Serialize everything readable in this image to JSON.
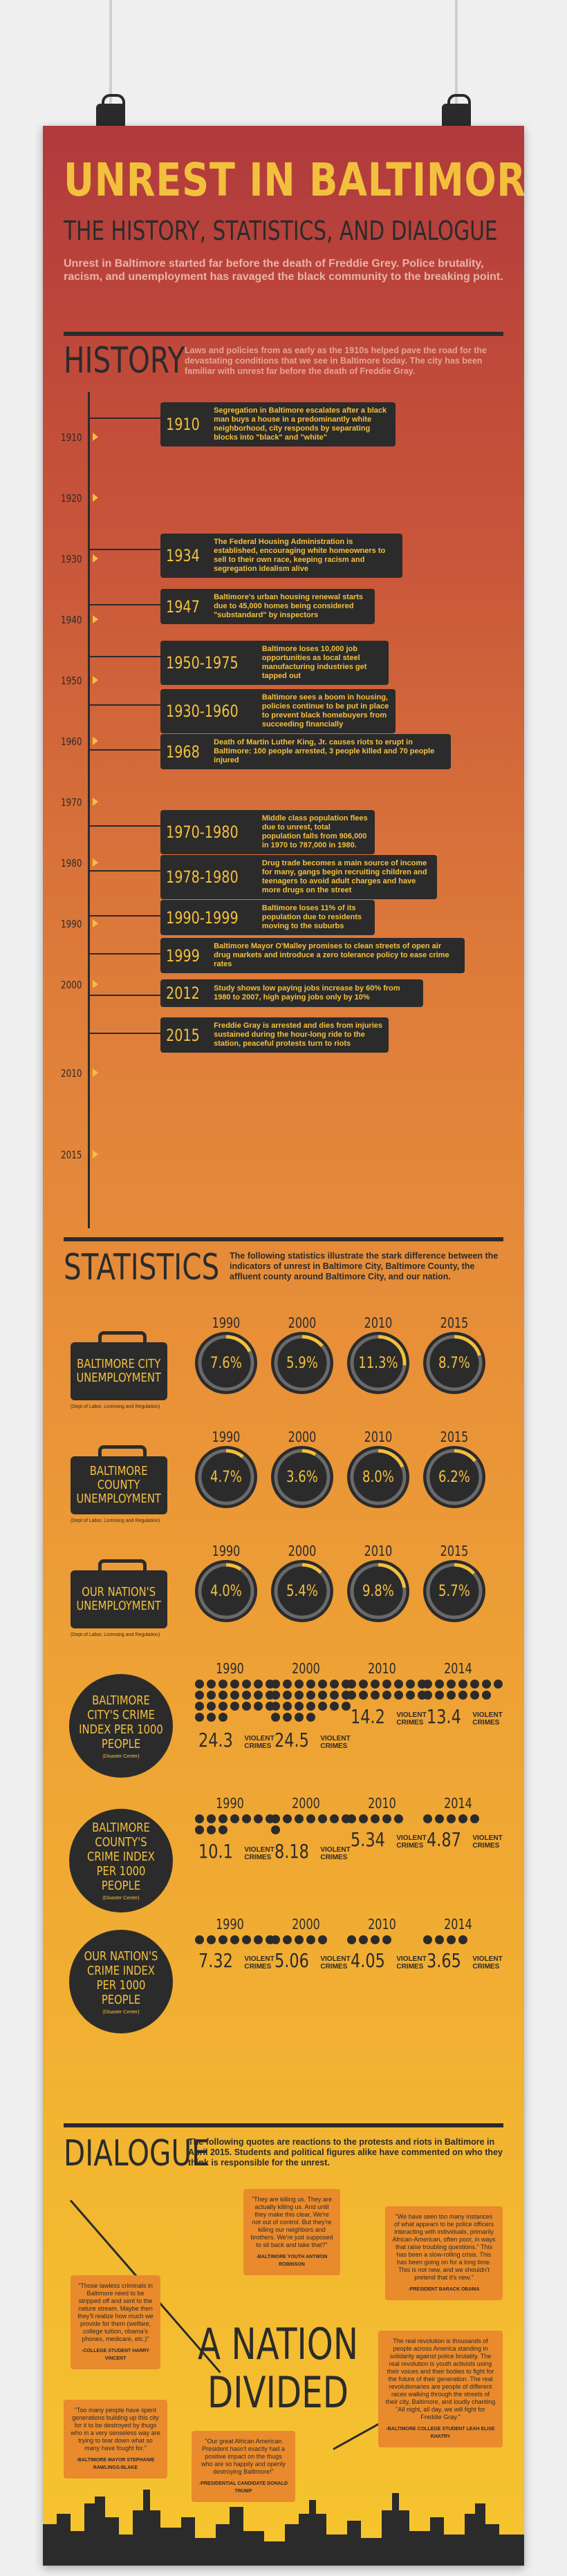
{
  "header": {
    "title": "UNREST IN BALTIMORE",
    "subtitle": "THE HISTORY, STATISTICS, AND DIALOGUE",
    "intro": "Unrest in Baltimore started far before the death of Freddie Grey. Police brutality, racism, and unemployment has ravaged the black community to the breaking point."
  },
  "history": {
    "heading": "HISTORY",
    "description": "Laws and policies from as early as the 1910s helped pave the road for the devastating conditions that we see in Baltimore today. The city has been familiar with unrest far before the death of Freddie Gray.",
    "axis_years": [
      "1910",
      "1920",
      "1930",
      "1940",
      "1950",
      "1960",
      "1970",
      "1980",
      "1990",
      "2000",
      "2010",
      "2015"
    ],
    "events": [
      {
        "year": "1910",
        "text": "Segregation in Baltimore escalates after a black man buys a house in a predominantly white neighborhood, city responds by separating blocks into \"black\" and \"white\""
      },
      {
        "year": "1934",
        "text": "The Federal Housing Administration is established, encouraging white homeowners to sell to their own race, keeping racism and segregation idealism alive"
      },
      {
        "year": "1947",
        "text": "Baltimore's urban housing renewal starts due to 45,000 homes being considered \"substandard\" by inspectors"
      },
      {
        "year": "1950-1975",
        "text": "Baltimore loses 10,000 job opportunities as local steel manufacturing industries get tapped out"
      },
      {
        "year": "1930-1960",
        "text": "Baltimore sees a boom in housing, policies continue to be put in place to prevent black homebuyers from succeeding financially"
      },
      {
        "year": "1968",
        "text": "Death of Martin Luther King, Jr. causes riots to erupt in Baltimore: 100 people arrested, 3 people killed and 70 people injured"
      },
      {
        "year": "1970-1980",
        "text": "Middle class population flees due to unrest, total population falls from 906,000 in 1970 to 787,000 in 1980."
      },
      {
        "year": "1978-1980",
        "text": "Drug trade becomes a main source of income for many, gangs begin recruiting children and teenagers to avoid adult charges and have more drugs on the street"
      },
      {
        "year": "1990-1999",
        "text": "Baltimore loses 11% of its population due to residents moving to the suburbs"
      },
      {
        "year": "1999",
        "text": "Baltimore Mayor O'Malley promises to clean streets of open air drug markets and introduce a zero tolerance policy to ease crime rates"
      },
      {
        "year": "2012",
        "text": "Study shows low paying jobs increase by 60% from 1980 to 2007, high paying jobs only by 10%"
      },
      {
        "year": "2015",
        "text": "Freddie Gray is arrested and dies from injuries sustained during the hour-long ride to the station, peaceful protests turn to riots"
      }
    ]
  },
  "statistics": {
    "heading": "STATISTICS",
    "description": "The following statistics illustrate the stark difference between the indicators of unrest in Baltimore City, Baltimore County, the affluent county around Baltimore City, and our nation.",
    "unemployment": [
      {
        "label": "BALTIMORE CITY UNEMPLOYMENT",
        "source": "(Dept of Labor, Licensing and Regulation)",
        "years": [
          "1990",
          "2000",
          "2010",
          "2015"
        ],
        "values": [
          7.6,
          5.9,
          11.3,
          8.7
        ],
        "display": [
          "7.6%",
          "5.9%",
          "11.3%",
          "8.7%"
        ]
      },
      {
        "label": "BALTIMORE COUNTY UNEMPLOYMENT",
        "source": "(Dept of Labor, Licensing and Regulation)",
        "years": [
          "1990",
          "2000",
          "2010",
          "2015"
        ],
        "values": [
          4.7,
          3.6,
          8.0,
          6.2
        ],
        "display": [
          "4.7%",
          "3.6%",
          "8.0%",
          "6.2%"
        ]
      },
      {
        "label": "OUR NATION'S UNEMPLOYMENT",
        "source": "(Dept of Labor, Licensing and Regulation)",
        "years": [
          "1990",
          "2000",
          "2010",
          "2015"
        ],
        "values": [
          4.0,
          5.4,
          9.8,
          5.7
        ],
        "display": [
          "4.0%",
          "5.4%",
          "9.8%",
          "5.7%"
        ]
      }
    ],
    "crime": [
      {
        "label": "BALTIMORE CITY'S CRIME INDEX PER 1000 PEOPLE",
        "source": "(Disaster Center)",
        "years": [
          "1990",
          "2000",
          "2010",
          "2014"
        ],
        "values": [
          24.3,
          24.5,
          14.2,
          13.4
        ],
        "display": [
          "24.3",
          "24.5",
          "14.2",
          "13.4"
        ]
      },
      {
        "label": "BALTIMORE COUNTY'S CRIME INDEX PER 1000 PEOPLE",
        "source": "(Disaster Center)",
        "years": [
          "1990",
          "2000",
          "2010",
          "2014"
        ],
        "values": [
          10.1,
          8.18,
          5.34,
          4.87
        ],
        "display": [
          "10.1",
          "8.18",
          "5.34",
          "4.87"
        ]
      },
      {
        "label": "OUR NATION'S CRIME INDEX PER 1000 PEOPLE",
        "source": "(Disaster Center)",
        "years": [
          "1990",
          "2000",
          "2010",
          "2014"
        ],
        "values": [
          7.32,
          5.06,
          4.05,
          3.65
        ],
        "display": [
          "7.32",
          "5.06",
          "4.05",
          "3.65"
        ]
      }
    ],
    "crime_unit": "VIOLENT CRIMES"
  },
  "dialogue": {
    "heading": "DIALOGUE",
    "description": "The following quotes are reactions to the protests and riots in Baltimore in April 2015. Students and political figures alike have commented on who they think is responsible for the unrest.",
    "center_line1": "A NATION",
    "center_line2": "DIVIDED",
    "quotes": [
      {
        "text": "\"They are killing us. They are actually killing us. And until they make this clear, We're not out of control. But they're killing our neighbors and brothers. We're just supposed to sit back and take that?\"",
        "author": "-BALTIMORE YOUTH ANTWON ROBINSON"
      },
      {
        "text": "\"We have seen too many instances of what appears to be police officers interacting with individuals, primarily African-American, often poor, in ways that raise troubling questions.\" This has been a slow-rolling crisis. This has been going on for a long time. This is not new, and we shouldn't pretend that it's new.\"",
        "author": "-PRESIDENT BARACK OBAMA"
      },
      {
        "text": "\"Those lawless criminals in Baltimore need to be stripped off and sent to the nature stream. Maybe then they'll realize how much we provide for them (welfare, college tuition, obama's phones, medicare, etc.)\"",
        "author": "-COLLEGE STUDENT HARRY VINCENT"
      },
      {
        "text": "\"Too many people have spent generations building up this city for it to be destroyed by thugs who in a very senseless way are trying to tear down what so many have fought for.\"",
        "author": "-BALTIMORE MAYOR STEPHANIE RAWLINGS-BLAKE"
      },
      {
        "text": "\"Our great African American President hasn't exactly had a positive impact on the thugs who are so happily and openly destroying Baltimore!\"",
        "author": "-PRESIDENTIAL CANDIDATE DONALD TRUMP"
      },
      {
        "text": "The real revolution is thousands of people across America standing in solidarity against police brutality. The real revolution is youth activists using their voices and their bodies to fight for the future of their generation. The real revolutionaries are people of different races walking through the streets of their city, Baltimore, and loudly chanting \"All night, all day, we will fight for Freddie Gray.\"",
        "author": "-BALTIMORE COLLEGE STUDENT LEAH ELISE KHATRY"
      }
    ]
  },
  "colors": {
    "accent_yellow": "#f3c03e",
    "dark": "#2b2b2b",
    "bubble_orange": "#e98a2c",
    "top_red": "#b03a3c",
    "bottom_yellow": "#f6c52e"
  }
}
